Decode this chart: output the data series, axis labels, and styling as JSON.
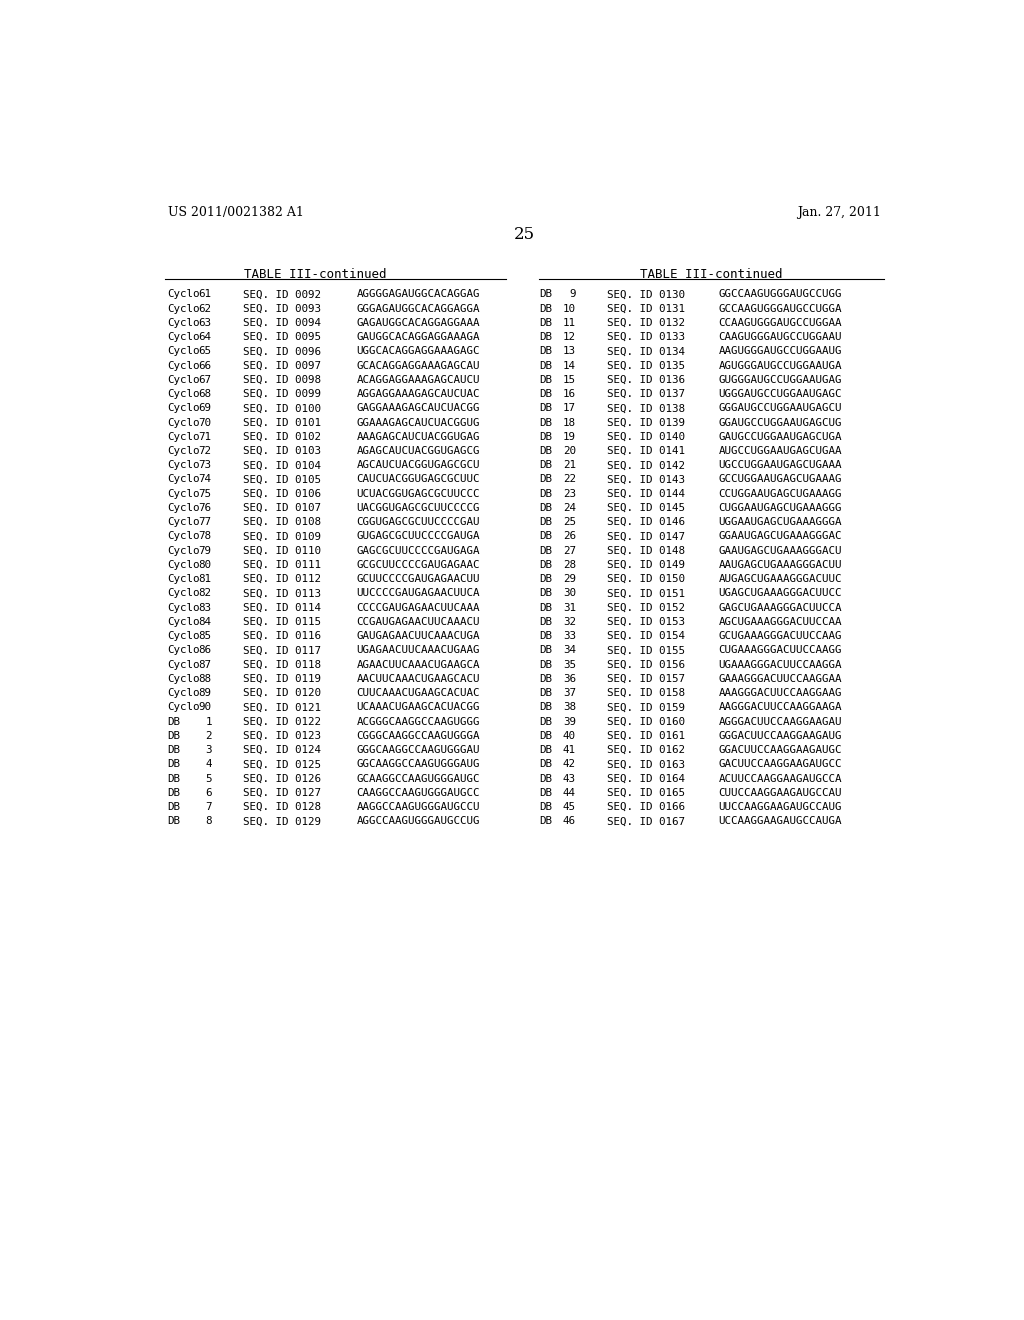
{
  "header_left": "US 2011/0021382 A1",
  "header_right": "Jan. 27, 2011",
  "page_number": "25",
  "table_title": "TABLE III-continued",
  "left_table": [
    [
      "Cyclo",
      "61",
      "SEQ. ID 0092",
      "AGGGGAGAUGGCACAGGAG"
    ],
    [
      "Cyclo",
      "62",
      "SEQ. ID 0093",
      "GGGAGAUGGCACAGGAGGA"
    ],
    [
      "Cyclo",
      "63",
      "SEQ. ID 0094",
      "GAGAUGGCACAGGAGGAAA"
    ],
    [
      "Cyclo",
      "64",
      "SEQ. ID 0095",
      "GAUGGCACAGGAGGAAAGA"
    ],
    [
      "Cyclo",
      "65",
      "SEQ. ID 0096",
      "UGGCACAGGAGGAAAGAGC"
    ],
    [
      "Cyclo",
      "66",
      "SEQ. ID 0097",
      "GCACAGGAGGAAAGAGCAU"
    ],
    [
      "Cyclo",
      "67",
      "SEQ. ID 0098",
      "ACAGGAGGAAAGAGCAUCU"
    ],
    [
      "Cyclo",
      "68",
      "SEQ. ID 0099",
      "AGGAGGAAAGAGCAUCUAC"
    ],
    [
      "Cyclo",
      "69",
      "SEQ. ID 0100",
      "GAGGAAAGAGCAUCUACGG"
    ],
    [
      "Cyclo",
      "70",
      "SEQ. ID 0101",
      "GGAAAGAGCAUCUACGGUG"
    ],
    [
      "Cyclo",
      "71",
      "SEQ. ID 0102",
      "AAAGAGCAUCUACGGUGAG"
    ],
    [
      "Cyclo",
      "72",
      "SEQ. ID 0103",
      "AGAGCAUCUACGGUGAGCG"
    ],
    [
      "Cyclo",
      "73",
      "SEQ. ID 0104",
      "AGCAUCUACGGUGAGCGCU"
    ],
    [
      "Cyclo",
      "74",
      "SEQ. ID 0105",
      "CAUCUACGGUGAGCGCUUC"
    ],
    [
      "Cyclo",
      "75",
      "SEQ. ID 0106",
      "UCUACGGUGAGCGCUUCCC"
    ],
    [
      "Cyclo",
      "76",
      "SEQ. ID 0107",
      "UACGGUGAGCGCUUCCCCG"
    ],
    [
      "Cyclo",
      "77",
      "SEQ. ID 0108",
      "CGGUGAGCGCUUCCCCGAU"
    ],
    [
      "Cyclo",
      "78",
      "SEQ. ID 0109",
      "GUGAGCGCUUCCCCGAUGA"
    ],
    [
      "Cyclo",
      "79",
      "SEQ. ID 0110",
      "GAGCGCUUCCCCGAUGAGA"
    ],
    [
      "Cyclo",
      "80",
      "SEQ. ID 0111",
      "GCGCUUCCCCGAUGAGAAC"
    ],
    [
      "Cyclo",
      "81",
      "SEQ. ID 0112",
      "GCUUCCCCGAUGAGAACUU"
    ],
    [
      "Cyclo",
      "82",
      "SEQ. ID 0113",
      "UUCCCCGAUGAGAACUUCA"
    ],
    [
      "Cyclo",
      "83",
      "SEQ. ID 0114",
      "CCCCGAUGAGAACUUCAAA"
    ],
    [
      "Cyclo",
      "84",
      "SEQ. ID 0115",
      "CCGAUGAGAACUUCAAACU"
    ],
    [
      "Cyclo",
      "85",
      "SEQ. ID 0116",
      "GAUGAGAACUUCAAACUGA"
    ],
    [
      "Cyclo",
      "86",
      "SEQ. ID 0117",
      "UGAGAACUUCAAACUGAAG"
    ],
    [
      "Cyclo",
      "87",
      "SEQ. ID 0118",
      "AGAACUUCAAACUGAAGCA"
    ],
    [
      "Cyclo",
      "88",
      "SEQ. ID 0119",
      "AACUUCAAACUGAAGCACU"
    ],
    [
      "Cyclo",
      "89",
      "SEQ. ID 0120",
      "CUUCAAACUGAAGCACUAC"
    ],
    [
      "Cyclo",
      "90",
      "SEQ. ID 0121",
      "UCAAACUGAAGCACUACGG"
    ],
    [
      "DB",
      "1",
      "SEQ. ID 0122",
      "ACGGGCAAGGCCAAGUGGG"
    ],
    [
      "DB",
      "2",
      "SEQ. ID 0123",
      "CGGGCAAGGCCAAGUGGGA"
    ],
    [
      "DB",
      "3",
      "SEQ. ID 0124",
      "GGGCAAGGCCAAGUGGGAU"
    ],
    [
      "DB",
      "4",
      "SEQ. ID 0125",
      "GGCAAGGCCAAGUGGGAUG"
    ],
    [
      "DB",
      "5",
      "SEQ. ID 0126",
      "GCAAGGCCAAGUGGGAUGC"
    ],
    [
      "DB",
      "6",
      "SEQ. ID 0127",
      "CAAGGCCAAGUGGGAUGCC"
    ],
    [
      "DB",
      "7",
      "SEQ. ID 0128",
      "AAGGCCAAGUGGGAUGCCU"
    ],
    [
      "DB",
      "8",
      "SEQ. ID 0129",
      "AGGCCAAGUGGGAUGCCUG"
    ]
  ],
  "right_table": [
    [
      "DB",
      "9",
      "SEQ. ID 0130",
      "GGCCAAGUGGGAUGCCUGG"
    ],
    [
      "DB",
      "10",
      "SEQ. ID 0131",
      "GCCAAGUGGGAUGCCUGGA"
    ],
    [
      "DB",
      "11",
      "SEQ. ID 0132",
      "CCAAGUGGGAUGCCUGGAA"
    ],
    [
      "DB",
      "12",
      "SEQ. ID 0133",
      "CAAGUGGGAUGCCUGGAAU"
    ],
    [
      "DB",
      "13",
      "SEQ. ID 0134",
      "AAGUGGGAUGCCUGGAAUG"
    ],
    [
      "DB",
      "14",
      "SEQ. ID 0135",
      "AGUGGGAUGCCUGGAAUGA"
    ],
    [
      "DB",
      "15",
      "SEQ. ID 0136",
      "GUGGGAUGCCUGGAAUGAG"
    ],
    [
      "DB",
      "16",
      "SEQ. ID 0137",
      "UGGGAUGCCUGGAAUGAGC"
    ],
    [
      "DB",
      "17",
      "SEQ. ID 0138",
      "GGGAUGCCUGGAAUGAGCU"
    ],
    [
      "DB",
      "18",
      "SEQ. ID 0139",
      "GGAUGCCUGGAAUGAGCUG"
    ],
    [
      "DB",
      "19",
      "SEQ. ID 0140",
      "GAUGCCUGGAAUGAGCUGA"
    ],
    [
      "DB",
      "20",
      "SEQ. ID 0141",
      "AUGCCUGGAAUGAGCUGAA"
    ],
    [
      "DB",
      "21",
      "SEQ. ID 0142",
      "UGCCUGGAAUGAGCUGAAA"
    ],
    [
      "DB",
      "22",
      "SEQ. ID 0143",
      "GCCUGGAAUGAGCUGAAAG"
    ],
    [
      "DB",
      "23",
      "SEQ. ID 0144",
      "CCUGGAAUGAGCUGAAAGG"
    ],
    [
      "DB",
      "24",
      "SEQ. ID 0145",
      "CUGGAAUGAGCUGAAAGGG"
    ],
    [
      "DB",
      "25",
      "SEQ. ID 0146",
      "UGGAAUGAGCUGAAAGGGA"
    ],
    [
      "DB",
      "26",
      "SEQ. ID 0147",
      "GGAAUGAGCUGAAAGGGAC"
    ],
    [
      "DB",
      "27",
      "SEQ. ID 0148",
      "GAAUGAGCUGAAAGGGACU"
    ],
    [
      "DB",
      "28",
      "SEQ. ID 0149",
      "AAUGAGCUGAAAGGGACUU"
    ],
    [
      "DB",
      "29",
      "SEQ. ID 0150",
      "AUGAGCUGAAAGGGACUUC"
    ],
    [
      "DB",
      "30",
      "SEQ. ID 0151",
      "UGAGCUGAAAGGGACUUCC"
    ],
    [
      "DB",
      "31",
      "SEQ. ID 0152",
      "GAGCUGAAAGGGACUUCCA"
    ],
    [
      "DB",
      "32",
      "SEQ. ID 0153",
      "AGCUGAAAGGGACUUCCAA"
    ],
    [
      "DB",
      "33",
      "SEQ. ID 0154",
      "GCUGAAAGGGACUUCCAAG"
    ],
    [
      "DB",
      "34",
      "SEQ. ID 0155",
      "CUGAAAGGGACUUCCAAGG"
    ],
    [
      "DB",
      "35",
      "SEQ. ID 0156",
      "UGAAAGGGACUUCCAAGGA"
    ],
    [
      "DB",
      "36",
      "SEQ. ID 0157",
      "GAAAGGGACUUCCAAGGAA"
    ],
    [
      "DB",
      "37",
      "SEQ. ID 0158",
      "AAAGGGACUUCCAAGGAAG"
    ],
    [
      "DB",
      "38",
      "SEQ. ID 0159",
      "AAGGGACUUCCAAGGAAGA"
    ],
    [
      "DB",
      "39",
      "SEQ. ID 0160",
      "AGGGACUUCCAAGGAAGAU"
    ],
    [
      "DB",
      "40",
      "SEQ. ID 0161",
      "GGGACUUCCAAGGAAGAUG"
    ],
    [
      "DB",
      "41",
      "SEQ. ID 0162",
      "GGACUUCCAAGGAAGAUGC"
    ],
    [
      "DB",
      "42",
      "SEQ. ID 0163",
      "GACUUCCAAGGAAGAUGCC"
    ],
    [
      "DB",
      "43",
      "SEQ. ID 0164",
      "ACUUCCAAGGAAGAUGCCA"
    ],
    [
      "DB",
      "44",
      "SEQ. ID 0165",
      "CUUCCAAGGAAGAUGCCAU"
    ],
    [
      "DB",
      "45",
      "SEQ. ID 0166",
      "UUCCAAGGAAGAUGCCAUG"
    ],
    [
      "DB",
      "46",
      "SEQ. ID 0167",
      "UCCAAGGAAGAUGCCAUGA"
    ]
  ],
  "bg_color": "#ffffff",
  "text_color": "#000000"
}
